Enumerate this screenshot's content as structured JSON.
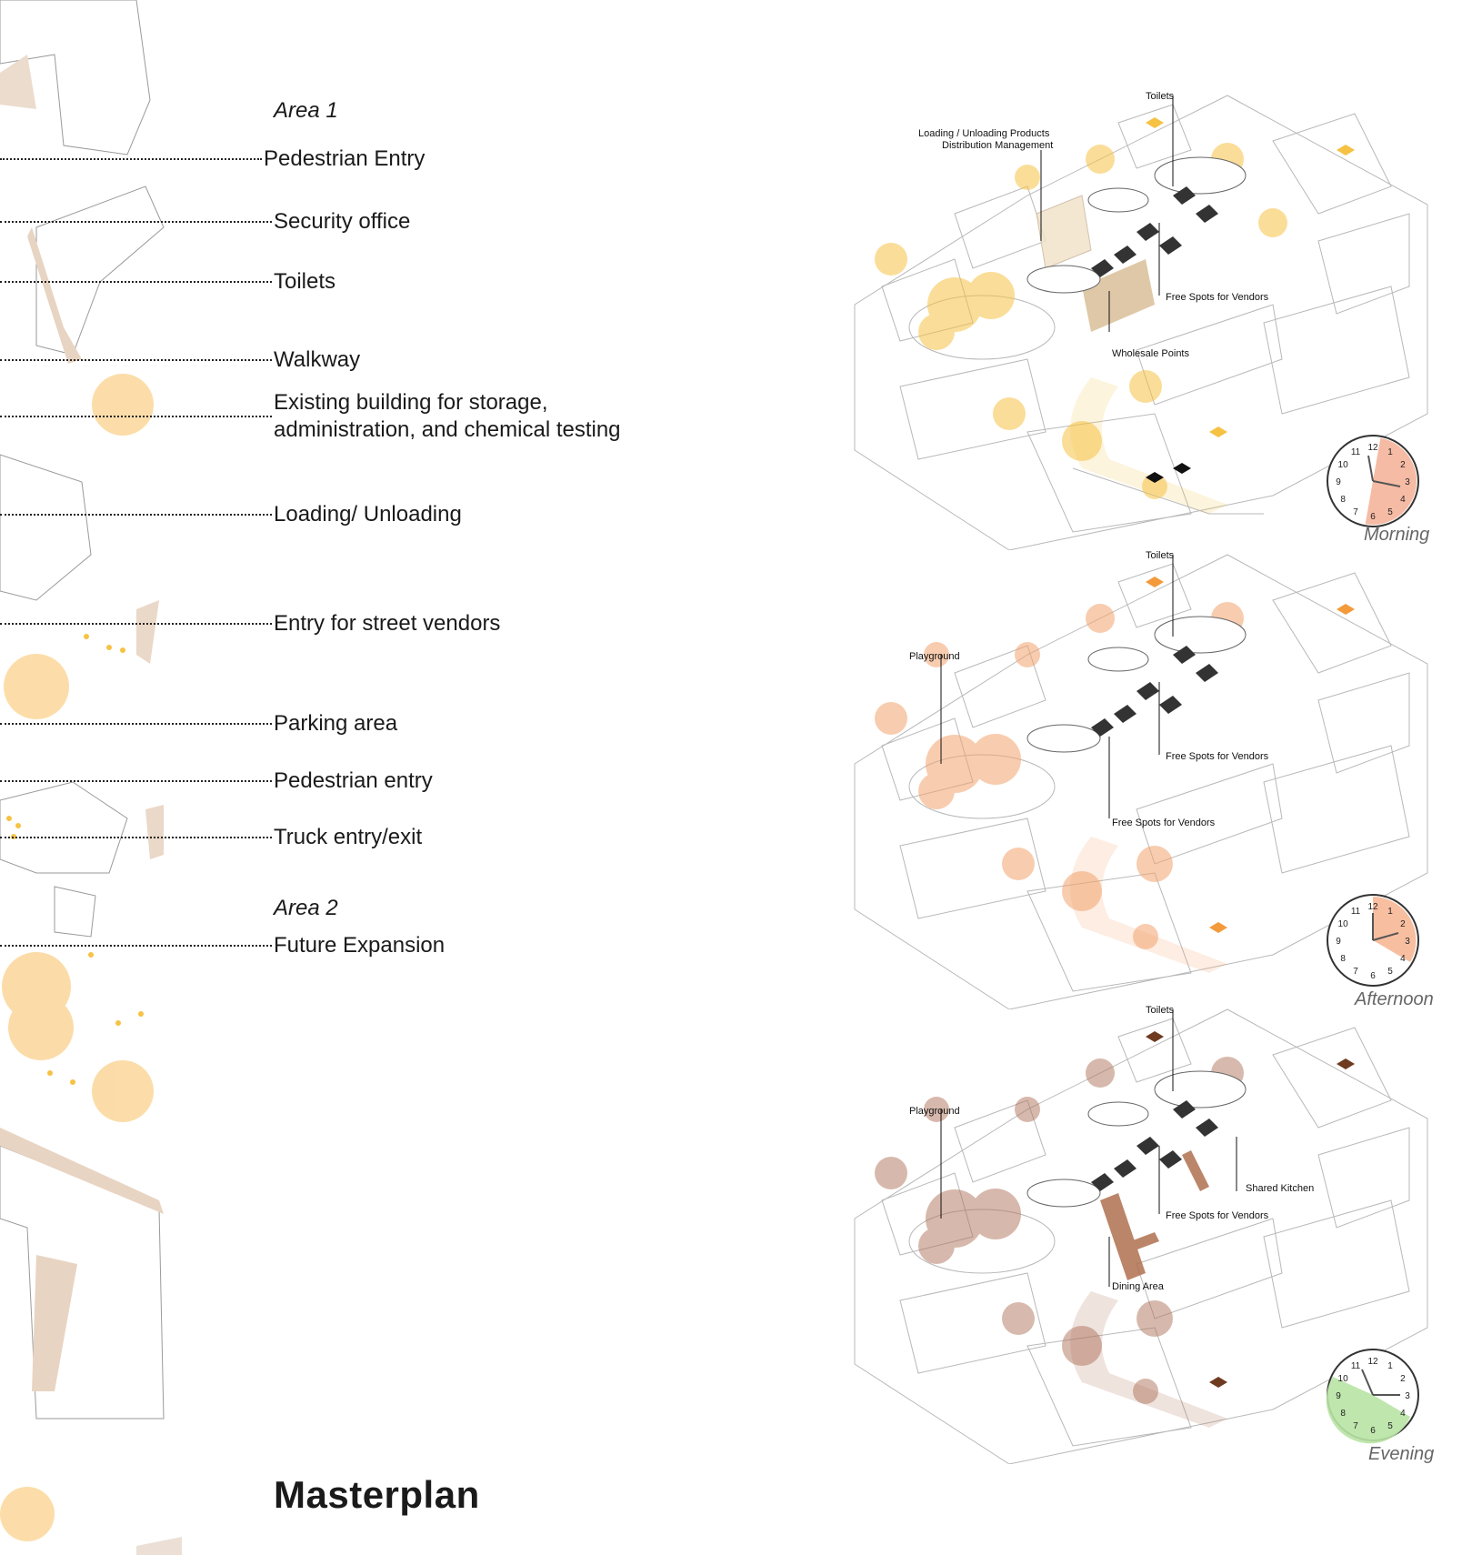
{
  "legend": {
    "area1": "Area 1",
    "area2": "Area 2",
    "items": [
      {
        "label": "Pedestrian Entry"
      },
      {
        "label": "Security office"
      },
      {
        "label": "Toilets"
      },
      {
        "label": "Walkway"
      },
      {
        "label": "Existing building for storage, administration, and chemical testing"
      },
      {
        "label": "Loading/ Unloading"
      },
      {
        "label": "Entry for street vendors"
      },
      {
        "label": "Parking area"
      },
      {
        "label": "Pedestrian entry"
      },
      {
        "label": "Truck entry/exit"
      },
      {
        "label": "Future Expansion"
      }
    ]
  },
  "title": "Masterplan",
  "colors": {
    "morning": "#f6c244",
    "afternoon": "#f3a36e",
    "evening": "#b0735c",
    "clock_morning": "#f5b49a",
    "clock_afternoon": "#f7b796",
    "clock_evening": "#b8e3a3",
    "shadow": "#ead8c8"
  },
  "panels": {
    "morning": {
      "time_of_day": "Morning",
      "callouts": {
        "toilets": "Toilets",
        "loading_1": "Loading / Unloading Products",
        "loading_2": "Distribution Management",
        "free_spots": "Free Spots for Vendors",
        "wholesale": "Wholesale Points"
      }
    },
    "afternoon": {
      "time_of_day": "Afternoon",
      "callouts": {
        "toilets": "Toilets",
        "playground": "Playground",
        "free_spots_1": "Free Spots for Vendors",
        "free_spots_2": "Free Spots for Vendors"
      }
    },
    "evening": {
      "time_of_day": "Evening",
      "callouts": {
        "toilets": "Toilets",
        "playground": "Playground",
        "shared_kitchen": "Shared Kitchen",
        "free_spots": "Free Spots for Vendors",
        "dining": "Dining Area"
      }
    }
  },
  "clock_numbers": [
    "12",
    "1",
    "2",
    "3",
    "4",
    "5",
    "6",
    "7",
    "8",
    "9",
    "10",
    "11"
  ]
}
